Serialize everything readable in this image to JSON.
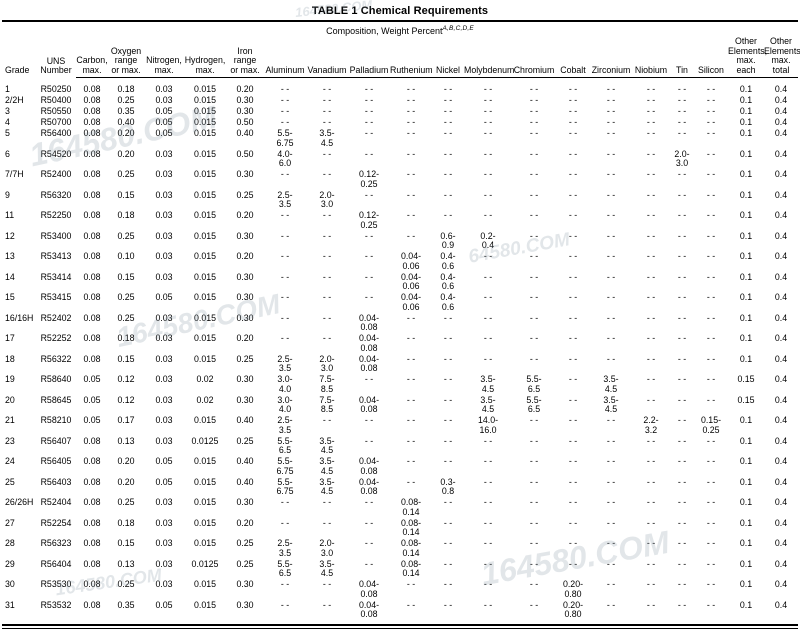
{
  "page": {
    "title": "TABLE 1 Chemical Requirements"
  },
  "subtitle": {
    "text": "Composition, Weight Percent",
    "superscript": "A,B,C,D,E"
  },
  "table": {
    "empty_marker": "- -",
    "column_keys": [
      "grade",
      "uns_number",
      "carbon",
      "oxygen",
      "nitrogen",
      "hydrogen",
      "iron",
      "aluminum",
      "vanadium",
      "palladium",
      "ruthenium",
      "nickel",
      "molybdenum",
      "chromium",
      "cobalt",
      "zirconium",
      "niobium",
      "tin",
      "silicon",
      "other_elements_max_each",
      "other_elements_max_total"
    ],
    "columns": [
      "Grade",
      "UNS\nNumber",
      "Carbon,\nmax.",
      "Oxygen\nrange\nor max.",
      "Nitrogen,\nmax.",
      "Hydrogen,\nmax.",
      "Iron\nrange\nor max.",
      "Aluminum",
      "Vanadium",
      "Palladium",
      "Ruthenium",
      "Nickel",
      "Molybdenum",
      "Chromium",
      "Cobalt",
      "Zirconium",
      "Niobium",
      "Tin",
      "Silicon",
      "Other\nElements,\nmax.\neach",
      "Other\nElements,\nmax.\ntotal"
    ],
    "rows": [
      [
        "1",
        "R50250",
        "0.08",
        "0.18",
        "0.03",
        "0.015",
        "0.20",
        "- -",
        "- -",
        "- -",
        "- -",
        "- -",
        "- -",
        "- -",
        "- -",
        "- -",
        "- -",
        "- -",
        "- -",
        "0.1",
        "0.4"
      ],
      [
        "2/2H",
        "R50400",
        "0.08",
        "0.25",
        "0.03",
        "0.015",
        "0.30",
        "- -",
        "- -",
        "- -",
        "- -",
        "- -",
        "- -",
        "- -",
        "- -",
        "- -",
        "- -",
        "- -",
        "- -",
        "0.1",
        "0.4"
      ],
      [
        "3",
        "R50550",
        "0.08",
        "0.35",
        "0.05",
        "0.015",
        "0.30",
        "- -",
        "- -",
        "- -",
        "- -",
        "- -",
        "- -",
        "- -",
        "- -",
        "- -",
        "- -",
        "- -",
        "- -",
        "0.1",
        "0.4"
      ],
      [
        "4",
        "R50700",
        "0.08",
        "0.40",
        "0.05",
        "0.015",
        "0.50",
        "- -",
        "- -",
        "- -",
        "- -",
        "- -",
        "- -",
        "- -",
        "- -",
        "- -",
        "- -",
        "- -",
        "- -",
        "0.1",
        "0.4"
      ],
      [
        "5",
        "R56400",
        "0.08",
        "0.20",
        "0.05",
        "0.015",
        "0.40",
        "5.5-\n6.75",
        "3.5-\n4.5",
        "- -",
        "- -",
        "- -",
        "- -",
        "- -",
        "- -",
        "- -",
        "- -",
        "- -",
        "- -",
        "0.1",
        "0.4"
      ],
      [
        "6",
        "R54520",
        "0.08",
        "0.20",
        "0.03",
        "0.015",
        "0.50",
        "4.0-\n6.0",
        "- -",
        "- -",
        "- -",
        "- -",
        "- -",
        "- -",
        "- -",
        "- -",
        "- -",
        "2.0-\n3.0",
        "- -",
        "0.1",
        "0.4"
      ],
      [
        "7/7H",
        "R52400",
        "0.08",
        "0.25",
        "0.03",
        "0.015",
        "0.30",
        "- -",
        "- -",
        "0.12-\n0.25",
        "- -",
        "- -",
        "- -",
        "- -",
        "- -",
        "- -",
        "- -",
        "- -",
        "- -",
        "0.1",
        "0.4"
      ],
      [
        "9",
        "R56320",
        "0.08",
        "0.15",
        "0.03",
        "0.015",
        "0.25",
        "2.5-\n3.5",
        "2.0-\n3.0",
        "- -",
        "- -",
        "- -",
        "- -",
        "- -",
        "- -",
        "- -",
        "- -",
        "- -",
        "- -",
        "0.1",
        "0.4"
      ],
      [
        "11",
        "R52250",
        "0.08",
        "0.18",
        "0.03",
        "0.015",
        "0.20",
        "- -",
        "- -",
        "0.12-\n0.25",
        "- -",
        "- -",
        "- -",
        "- -",
        "- -",
        "- -",
        "- -",
        "- -",
        "- -",
        "0.1",
        "0.4"
      ],
      [
        "12",
        "R53400",
        "0.08",
        "0.25",
        "0.03",
        "0.015",
        "0.30",
        "- -",
        "- -",
        "- -",
        "- -",
        "0.6-\n0.9",
        "0.2-\n0.4",
        "- -",
        "- -",
        "- -",
        "- -",
        "- -",
        "- -",
        "0.1",
        "0.4"
      ],
      [
        "13",
        "R53413",
        "0.08",
        "0.10",
        "0.03",
        "0.015",
        "0.20",
        "- -",
        "- -",
        "- -",
        "0.04-\n0.06",
        "0.4-\n0.6",
        "- -",
        "- -",
        "- -",
        "- -",
        "- -",
        "- -",
        "- -",
        "0.1",
        "0.4"
      ],
      [
        "14",
        "R53414",
        "0.08",
        "0.15",
        "0.03",
        "0.015",
        "0.30",
        "- -",
        "- -",
        "- -",
        "0.04-\n0.06",
        "0.4-\n0.6",
        "- -",
        "- -",
        "- -",
        "- -",
        "- -",
        "- -",
        "- -",
        "0.1",
        "0.4"
      ],
      [
        "15",
        "R53415",
        "0.08",
        "0.25",
        "0.05",
        "0.015",
        "0.30",
        "- -",
        "- -",
        "- -",
        "0.04-\n0.06",
        "0.4-\n0.6",
        "- -",
        "- -",
        "- -",
        "- -",
        "- -",
        "- -",
        "- -",
        "0.1",
        "0.4"
      ],
      [
        "16/16H",
        "R52402",
        "0.08",
        "0.25",
        "0.03",
        "0.015",
        "0.30",
        "- -",
        "- -",
        "0.04-\n0.08",
        "- -",
        "- -",
        "- -",
        "- -",
        "- -",
        "- -",
        "- -",
        "- -",
        "- -",
        "0.1",
        "0.4"
      ],
      [
        "17",
        "R52252",
        "0.08",
        "0.18",
        "0.03",
        "0.015",
        "0.20",
        "- -",
        "- -",
        "0.04-\n0.08",
        "- -",
        "- -",
        "- -",
        "- -",
        "- -",
        "- -",
        "- -",
        "- -",
        "- -",
        "0.1",
        "0.4"
      ],
      [
        "18",
        "R56322",
        "0.08",
        "0.15",
        "0.03",
        "0.015",
        "0.25",
        "2.5-\n3.5",
        "2.0-\n3.0",
        "0.04-\n0.08",
        "- -",
        "- -",
        "- -",
        "- -",
        "- -",
        "- -",
        "- -",
        "- -",
        "- -",
        "0.1",
        "0.4"
      ],
      [
        "19",
        "R58640",
        "0.05",
        "0.12",
        "0.03",
        "0.02",
        "0.30",
        "3.0-\n4.0",
        "7.5-\n8.5",
        "- -",
        "- -",
        "- -",
        "3.5-\n4.5",
        "5.5-\n6.5",
        "- -",
        "3.5-\n4.5",
        "- -",
        "- -",
        "- -",
        "0.15",
        "0.4"
      ],
      [
        "20",
        "R58645",
        "0.05",
        "0.12",
        "0.03",
        "0.02",
        "0.30",
        "3.0-\n4.0",
        "7.5-\n8.5",
        "0.04-\n0.08",
        "- -",
        "- -",
        "3.5-\n4.5",
        "5.5-\n6.5",
        "- -",
        "3.5-\n4.5",
        "- -",
        "- -",
        "- -",
        "0.15",
        "0.4"
      ],
      [
        "21",
        "R58210",
        "0.05",
        "0.17",
        "0.03",
        "0.015",
        "0.40",
        "2.5-\n3.5",
        "- -",
        "- -",
        "- -",
        "- -",
        "14.0-\n16.0",
        "- -",
        "- -",
        "- -",
        "2.2-\n3.2",
        "- -",
        "0.15-\n0.25",
        "0.1",
        "0.4"
      ],
      [
        "23",
        "R56407",
        "0.08",
        "0.13",
        "0.03",
        "0.0125",
        "0.25",
        "5.5-\n6.5",
        "3.5-\n4.5",
        "- -",
        "- -",
        "- -",
        "- -",
        "- -",
        "- -",
        "- -",
        "- -",
        "- -",
        "- -",
        "0.1",
        "0.4"
      ],
      [
        "24",
        "R56405",
        "0.08",
        "0.20",
        "0.05",
        "0.015",
        "0.40",
        "5.5-\n6.75",
        "3.5-\n4.5",
        "0.04-\n0.08",
        "- -",
        "- -",
        "- -",
        "- -",
        "- -",
        "- -",
        "- -",
        "- -",
        "- -",
        "0.1",
        "0.4"
      ],
      [
        "25",
        "R56403",
        "0.08",
        "0.20",
        "0.05",
        "0.015",
        "0.40",
        "5.5-\n6.75",
        "3.5-\n4.5",
        "0.04-\n0.08",
        "- -",
        "0.3-\n0.8",
        "- -",
        "- -",
        "- -",
        "- -",
        "- -",
        "- -",
        "- -",
        "0.1",
        "0.4"
      ],
      [
        "26/26H",
        "R52404",
        "0.08",
        "0.25",
        "0.03",
        "0.015",
        "0.30",
        "- -",
        "- -",
        "- -",
        "0.08-\n0.14",
        "- -",
        "- -",
        "- -",
        "- -",
        "- -",
        "- -",
        "- -",
        "- -",
        "0.1",
        "0.4"
      ],
      [
        "27",
        "R52254",
        "0.08",
        "0.18",
        "0.03",
        "0.015",
        "0.20",
        "- -",
        "- -",
        "- -",
        "0.08-\n0.14",
        "- -",
        "- -",
        "- -",
        "- -",
        "- -",
        "- -",
        "- -",
        "- -",
        "0.1",
        "0.4"
      ],
      [
        "28",
        "R56323",
        "0.08",
        "0.15",
        "0.03",
        "0.015",
        "0.25",
        "2.5-\n3.5",
        "2.0-\n3.0",
        "- -",
        "0.08-\n0.14",
        "- -",
        "- -",
        "- -",
        "- -",
        "- -",
        "- -",
        "- -",
        "- -",
        "0.1",
        "0.4"
      ],
      [
        "29",
        "R56404",
        "0.08",
        "0.13",
        "0.03",
        "0.0125",
        "0.25",
        "5.5-\n6.5",
        "3.5-\n4.5",
        "- -",
        "0.08-\n0.14",
        "- -",
        "- -",
        "- -",
        "- -",
        "- -",
        "- -",
        "- -",
        "- -",
        "0.1",
        "0.4"
      ],
      [
        "30",
        "R53530",
        "0.08",
        "0.25",
        "0.03",
        "0.015",
        "0.30",
        "- -",
        "- -",
        "0.04-\n0.08",
        "- -",
        "- -",
        "- -",
        "- -",
        "0.20-\n0.80",
        "- -",
        "- -",
        "- -",
        "- -",
        "0.1",
        "0.4"
      ],
      [
        "31",
        "R53532",
        "0.08",
        "0.35",
        "0.05",
        "0.015",
        "0.30",
        "- -",
        "- -",
        "0.04-\n0.08",
        "- -",
        "- -",
        "- -",
        "- -",
        "0.20-\n0.80",
        "- -",
        "- -",
        "- -",
        "- -",
        "0.1",
        "0.4"
      ]
    ]
  },
  "watermarks": [
    "164580.COM",
    "164580.COM",
    "64580.COM",
    "164580.COM",
    "164580.COM",
    "164580.COM"
  ]
}
